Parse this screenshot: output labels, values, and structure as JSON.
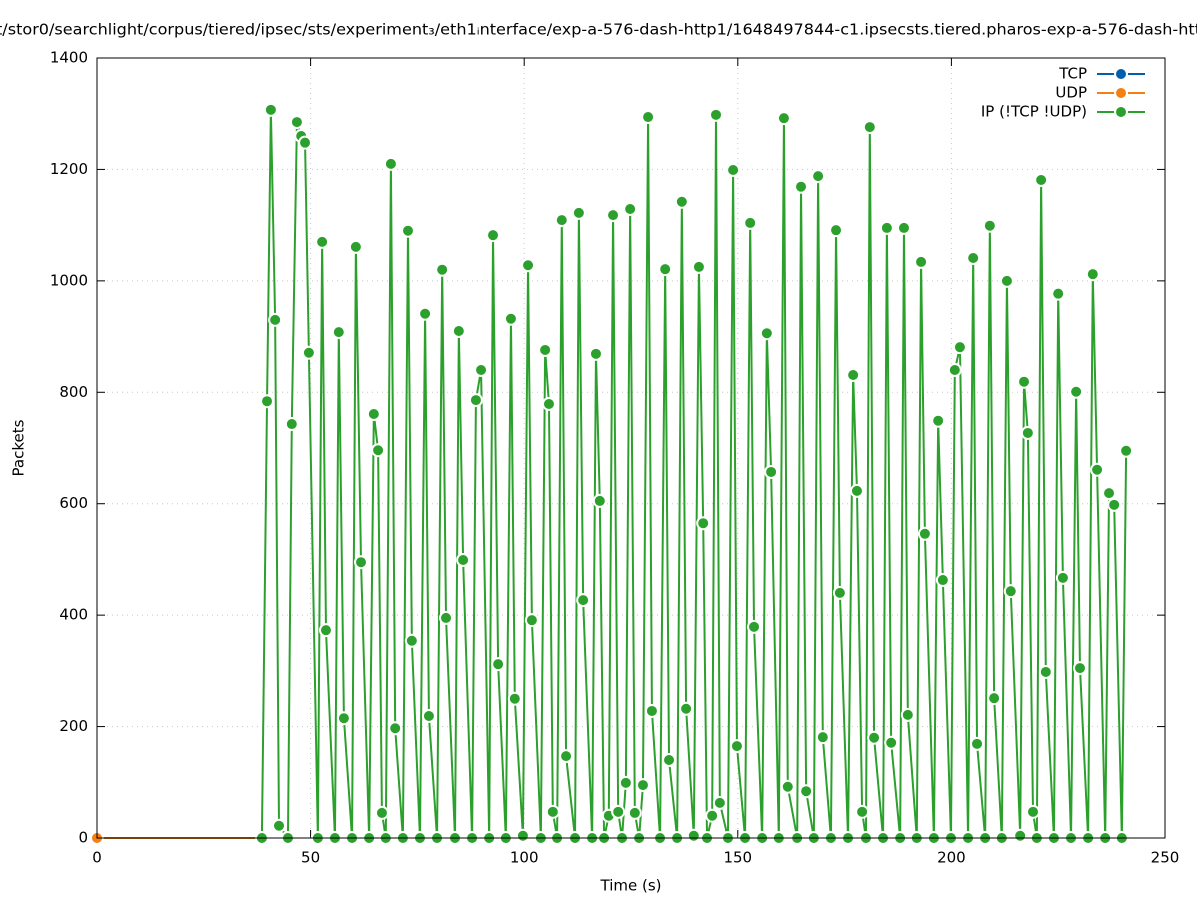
{
  "chart_data": {
    "type": "line",
    "title": "t/stor0/searchlight/corpus/tiered/ipsec/sts/experiment₃/eth1ᵢnterface/exp-a-576-dash-http1/1648497844-c1.ipsecsts.tiered.pharos-exp-a-576-dash-htt",
    "xlabel": "Time (s)",
    "ylabel": "Packets",
    "xlim": [
      0,
      250
    ],
    "xticks": [
      0,
      50,
      100,
      150,
      200,
      250
    ],
    "ylim": [
      0,
      1400
    ],
    "yticks": [
      0,
      200,
      400,
      600,
      800,
      1000,
      1200,
      1400
    ],
    "grid": true,
    "legend": "top-right",
    "series": [
      {
        "name": "TCP",
        "color": "#0060ad",
        "x": [
          0,
          38.6
        ],
        "values": [
          0,
          0
        ]
      },
      {
        "name": "UDP",
        "color": "#f47f12",
        "x": [
          0,
          38.6
        ],
        "values": [
          0,
          0
        ]
      },
      {
        "name": "IP (!TCP  !UDP)",
        "color": "#2ca02c",
        "x": [
          38.6,
          39.8,
          40.7,
          41.7,
          42.6,
          44.7,
          45.6,
          46.8,
          47.8,
          48.7,
          49.6,
          51.7,
          52.7,
          53.6,
          55.7,
          56.6,
          57.8,
          59.7,
          60.6,
          61.8,
          63.7,
          64.8,
          65.8,
          66.7,
          67.6,
          68.8,
          69.8,
          71.6,
          72.8,
          73.7,
          75.6,
          76.8,
          77.7,
          79.6,
          80.8,
          81.7,
          83.8,
          84.7,
          85.7,
          87.8,
          88.7,
          89.9,
          91.8,
          92.7,
          93.9,
          95.7,
          96.9,
          97.8,
          99.7,
          100.9,
          101.8,
          103.9,
          104.9,
          105.8,
          106.7,
          107.7,
          108.8,
          109.8,
          111.9,
          112.8,
          113.8,
          115.9,
          116.8,
          117.7,
          118.7,
          119.8,
          120.8,
          122.0,
          122.9,
          123.8,
          124.8,
          125.9,
          126.9,
          127.8,
          129.0,
          129.9,
          131.8,
          133.0,
          133.9,
          135.8,
          136.9,
          137.9,
          139.7,
          140.9,
          141.9,
          142.8,
          144.0,
          144.9,
          145.8,
          147.7,
          148.9,
          149.8,
          151.7,
          152.9,
          153.8,
          155.7,
          156.8,
          157.8,
          159.6,
          160.8,
          161.7,
          163.9,
          164.8,
          166.0,
          167.8,
          168.8,
          169.9,
          171.8,
          173.0,
          173.9,
          175.8,
          177.0,
          177.9,
          179.1,
          180.0,
          180.9,
          181.9,
          184.0,
          184.9,
          185.9,
          188.0,
          188.9,
          189.8,
          191.9,
          192.9,
          193.8,
          195.9,
          196.9,
          198.0,
          199.9,
          200.8,
          202.0,
          203.9,
          205.1,
          206.0,
          207.9,
          209.0,
          210.0,
          211.8,
          213.0,
          213.9,
          216.1,
          217.0,
          217.9,
          219.1,
          220.0,
          221.0,
          222.1,
          224.0,
          225.0,
          226.1,
          228.0,
          229.2,
          230.1,
          232.0,
          233.1,
          234.1,
          236.0,
          236.9,
          238.1,
          239.9,
          240.9
        ],
        "values": [
          0,
          784,
          1307,
          930,
          22,
          0,
          743,
          1285,
          1260,
          1248,
          871,
          0,
          1070,
          373,
          0,
          908,
          215,
          0,
          1061,
          495,
          0,
          761,
          696,
          45,
          0,
          1210,
          197,
          0,
          1090,
          354,
          0,
          941,
          219,
          0,
          1020,
          395,
          0,
          910,
          499,
          0,
          786,
          840,
          0,
          1082,
          312,
          0,
          932,
          250,
          4,
          1028,
          391,
          0,
          876,
          779,
          47,
          0,
          1109,
          147,
          0,
          1122,
          427,
          0,
          869,
          605,
          0,
          40,
          1118,
          47,
          0,
          99,
          1129,
          45,
          0,
          95,
          1294,
          228,
          0,
          1021,
          140,
          0,
          1142,
          232,
          4,
          1025,
          565,
          0,
          40,
          1298,
          63,
          0,
          1199,
          165,
          0,
          1104,
          379,
          0,
          906,
          657,
          0,
          1292,
          92,
          0,
          1169,
          84,
          0,
          1188,
          181,
          0,
          1091,
          440,
          0,
          831,
          623,
          47,
          0,
          1276,
          180,
          0,
          1095,
          171,
          0,
          1095,
          221,
          0,
          1034,
          546,
          0,
          749,
          463,
          0,
          840,
          881,
          0,
          1041,
          169,
          0,
          1099,
          251,
          0,
          1000,
          443,
          4,
          819,
          727,
          47,
          0,
          1181,
          298,
          0,
          977,
          467,
          0,
          801,
          305,
          0,
          1012,
          661,
          0,
          619,
          598,
          0,
          695
        ]
      }
    ]
  }
}
